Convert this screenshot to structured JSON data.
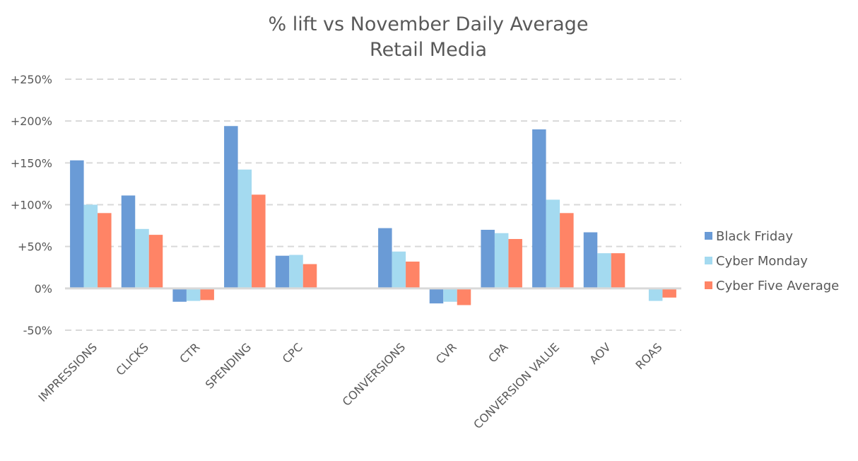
{
  "chart_data": {
    "type": "bar",
    "title": "% lift vs November Daily Average",
    "subtitle": "Retail Media",
    "xlabel": "",
    "ylabel": "",
    "ylim": [
      -50,
      250
    ],
    "yticks": [
      -50,
      0,
      50,
      100,
      150,
      200,
      250
    ],
    "ytick_labels": [
      "-50%",
      "0%",
      "+50%",
      "+100%",
      "+150%",
      "+200%",
      "+250%"
    ],
    "grid": true,
    "legend_position": "right",
    "categories": [
      "IMPRESSIONS",
      "CLICKS",
      "CTR",
      "SPENDING",
      "CPC",
      "",
      "CONVERSIONS",
      "CVR",
      "CPA",
      "CONVERSION VALUE",
      "AOV",
      "ROAS"
    ],
    "series": [
      {
        "name": "Black Friday",
        "color": "#6A9BD6",
        "values": [
          153,
          111,
          -16,
          194,
          39,
          null,
          72,
          -18,
          70,
          190,
          67,
          0
        ]
      },
      {
        "name": "Cyber Monday",
        "color": "#A4DAF0",
        "values": [
          100,
          71,
          -15,
          142,
          40,
          null,
          44,
          -16,
          66,
          106,
          42,
          -15
        ]
      },
      {
        "name": "Cyber Five Average",
        "color": "#FF8466",
        "values": [
          90,
          64,
          -14,
          112,
          29,
          null,
          32,
          -20,
          59,
          90,
          42,
          -11
        ]
      }
    ]
  }
}
